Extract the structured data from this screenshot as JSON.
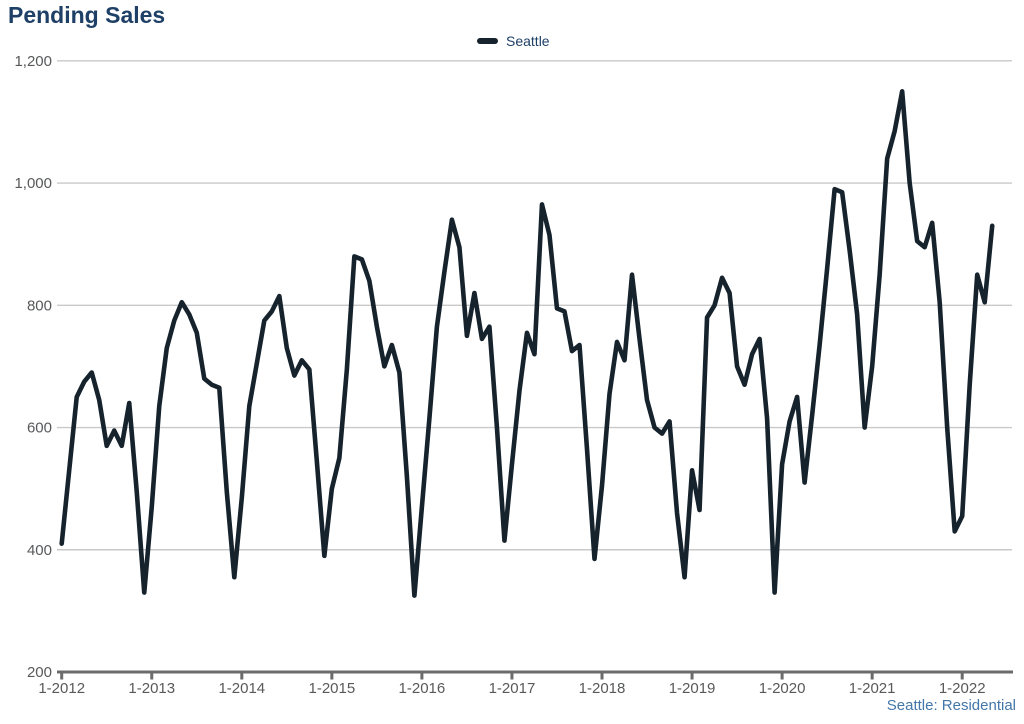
{
  "title": "Pending Sales",
  "legend": {
    "label": "Seattle"
  },
  "footnote": "Seattle: Residential",
  "colors": {
    "background": "#ffffff",
    "line": "#16232d",
    "title_text": "#1f4066",
    "legend_text": "#1f4066",
    "axis_label": "#58595b",
    "gridline": "#c9c9c9",
    "axis_line": "#6b6b6b",
    "footnote_text": "#4377a9"
  },
  "chart_data": {
    "type": "line",
    "title": "Pending Sales",
    "legend_position": "top-center",
    "grid": "horizontal",
    "ylim": [
      200,
      1200
    ],
    "line_width": 4.6,
    "y_ticks": [
      {
        "value": 1200,
        "label": "1,200"
      },
      {
        "value": 1000,
        "label": "1,000"
      },
      {
        "value": 800,
        "label": "800"
      },
      {
        "value": 600,
        "label": "600"
      },
      {
        "value": 400,
        "label": "400"
      },
      {
        "value": 200,
        "label": "200"
      }
    ],
    "x_tick_labels": [
      "1-2012",
      "1-2013",
      "1-2014",
      "1-2015",
      "1-2016",
      "1-2017",
      "1-2018",
      "1-2019",
      "1-2020",
      "1-2021",
      "1-2022"
    ],
    "series": [
      {
        "name": "Seattle",
        "frequency": "monthly",
        "start_month": "2012-01",
        "end_month": "2022-05",
        "values": [
          410,
          530,
          650,
          675,
          690,
          645,
          570,
          595,
          570,
          640,
          495,
          330,
          470,
          635,
          730,
          775,
          805,
          785,
          755,
          680,
          670,
          665,
          495,
          355,
          485,
          635,
          705,
          775,
          790,
          815,
          730,
          685,
          710,
          695,
          545,
          390,
          500,
          550,
          695,
          880,
          875,
          840,
          765,
          700,
          735,
          690,
          520,
          325,
          470,
          615,
          765,
          855,
          940,
          895,
          750,
          820,
          745,
          765,
          600,
          415,
          540,
          660,
          755,
          720,
          965,
          915,
          795,
          790,
          725,
          735,
          565,
          385,
          505,
          655,
          740,
          710,
          850,
          745,
          645,
          600,
          590,
          610,
          460,
          355,
          530,
          465,
          780,
          800,
          845,
          820,
          700,
          670,
          720,
          745,
          615,
          330,
          540,
          610,
          650,
          510,
          620,
          735,
          860,
          990,
          985,
          890,
          785,
          600,
          700,
          850,
          1040,
          1085,
          1150,
          1000,
          905,
          895,
          935,
          805,
          600,
          430,
          455,
          670,
          850,
          805,
          930
        ]
      }
    ]
  }
}
